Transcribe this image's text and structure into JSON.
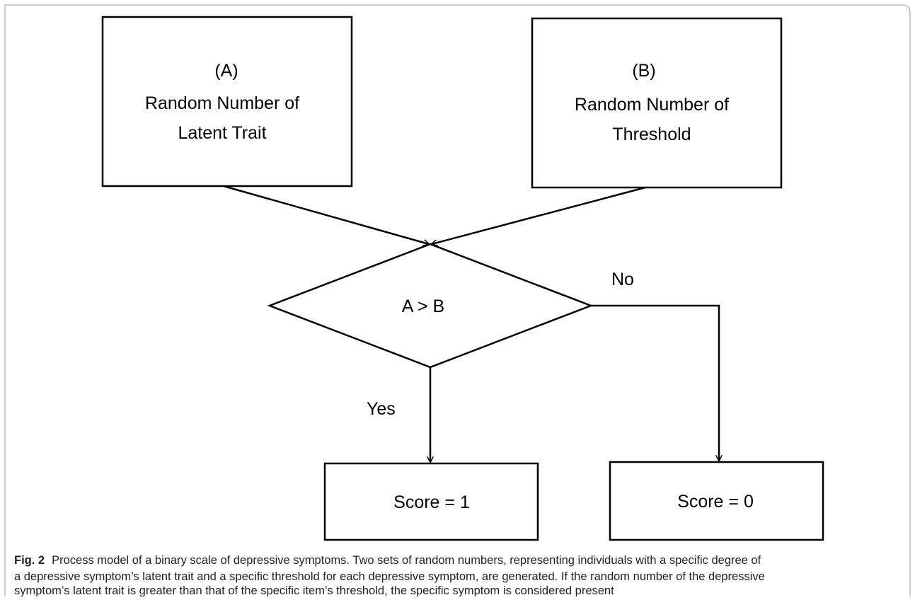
{
  "nodes": [
    {
      "id": "A",
      "lines": [
        "(A)",
        "Random Number of",
        "Latent Trait"
      ]
    },
    {
      "id": "B",
      "lines": [
        "(B)",
        "Random Number of",
        "Threshold"
      ]
    },
    {
      "id": "decision",
      "lines": [
        "A > B"
      ]
    },
    {
      "id": "yes_out",
      "lines": [
        "Score = 1"
      ]
    },
    {
      "id": "no_out",
      "lines": [
        "Score = 0"
      ]
    }
  ],
  "edges": [
    {
      "from": "A",
      "to": "decision"
    },
    {
      "from": "B",
      "to": "decision"
    },
    {
      "from": "decision",
      "to": "yes_out",
      "label": "Yes"
    },
    {
      "from": "decision",
      "to": "no_out",
      "label": "No"
    }
  ],
  "caption": {
    "label": "Fig. 2",
    "lines": [
      "Process model of a binary scale of depressive symptoms. Two sets of random numbers, representing individuals with a specific degree of",
      "a depressive symptom’s latent trait and a specific threshold for each depressive symptom, are generated. If the random number of the depressive",
      "symptom’s latent trait is greater than that of the specific item’s threshold, the specific symptom is considered present"
    ]
  }
}
